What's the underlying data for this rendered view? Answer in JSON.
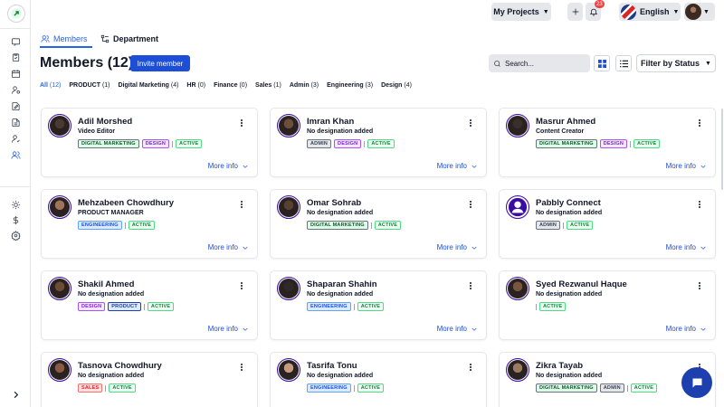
{
  "header": {
    "projects_label": "My Projects",
    "notification_count": "23",
    "language": "English"
  },
  "tabs": [
    {
      "label": "Members"
    },
    {
      "label": "Department"
    }
  ],
  "page": {
    "title": "Members (12)",
    "invite_label": "Invite member",
    "search_placeholder": "Search...",
    "filter_label": "Filter by Status"
  },
  "filters": [
    {
      "label": "All",
      "count": "(12)"
    },
    {
      "label": "PRODUCT",
      "count": "(1)"
    },
    {
      "label": "Digital Marketing",
      "count": "(4)"
    },
    {
      "label": "HR",
      "count": "(0)"
    },
    {
      "label": "Finance",
      "count": "(0)"
    },
    {
      "label": "Sales",
      "count": "(1)"
    },
    {
      "label": "Admin",
      "count": "(3)"
    },
    {
      "label": "Engineering",
      "count": "(3)"
    },
    {
      "label": "Design",
      "count": "(4)"
    }
  ],
  "more_info_label": "More info",
  "members": [
    {
      "name": "Adil Morshed",
      "role": "Video Editor",
      "tags": [
        "DIGITAL MARKETING",
        "DESIGN"
      ],
      "status": "ACTIVE"
    },
    {
      "name": "Imran Khan",
      "role": "No designation added",
      "tags": [
        "ADMIN",
        "DESIGN"
      ],
      "status": "ACTIVE"
    },
    {
      "name": "Masrur Ahmed",
      "role": "Content Creator",
      "tags": [
        "DIGITAL MARKETING",
        "DESIGN"
      ],
      "status": "ACTIVE"
    },
    {
      "name": "Mehzabeen Chowdhury",
      "role": "PRODUCT MANAGER",
      "tags": [
        "ENGINEERING"
      ],
      "status": "ACTIVE"
    },
    {
      "name": "Omar Sohrab",
      "role": "No designation added",
      "tags": [
        "DIGITAL MARKETING"
      ],
      "status": "ACTIVE"
    },
    {
      "name": "Pabbly Connect",
      "role": "No designation added",
      "tags": [
        "ADMIN"
      ],
      "status": "ACTIVE"
    },
    {
      "name": "Shakil Ahmed",
      "role": "No designation added",
      "tags": [
        "DESIGN",
        "PRODUCT"
      ],
      "status": "ACTIVE"
    },
    {
      "name": "Shaparan Shahin",
      "role": "No designation added",
      "tags": [
        "ENGINEERING"
      ],
      "status": "ACTIVE"
    },
    {
      "name": "Syed Rezwanul Haque",
      "role": "No designation added",
      "tags": [],
      "status": "ACTIVE"
    },
    {
      "name": "Tasnova Chowdhury",
      "role": "No designation added",
      "tags": [
        "SALES"
      ],
      "status": "ACTIVE"
    },
    {
      "name": "Tasrifa Tonu",
      "role": "No designation added",
      "tags": [
        "ENGINEERING"
      ],
      "status": "ACTIVE"
    },
    {
      "name": "Zikra Tayab",
      "role": "No designation added",
      "tags": [
        "DIGITAL MARKETING",
        "ADMIN"
      ],
      "status": "ACTIVE"
    }
  ],
  "icons": {
    "logo": "pabbly-logo",
    "sidebar": [
      "chat-icon",
      "clipboard-icon",
      "calendar-icon",
      "user-settings-icon",
      "edit-document-icon",
      "document-icon",
      "user-check-icon",
      "users-icon",
      "sun-icon",
      "dollar-icon",
      "gear-icon",
      "chevron-right-icon"
    ]
  },
  "colors": {
    "primary": "#1d4ed8",
    "active_tab": "#2563eb"
  }
}
